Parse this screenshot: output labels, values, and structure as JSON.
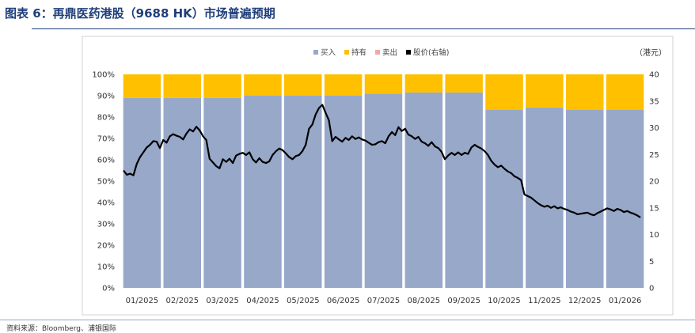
{
  "figure": {
    "title": "图表 6：再鼎医药港股（9688 HK）市场普遍预期",
    "source": "资料来源：Bloomberg、浦银国际"
  },
  "chart_data": {
    "type": "bar",
    "stacked": true,
    "percent_stacked": true,
    "unit_right": "（港元）",
    "categories": [
      "01/2025",
      "02/2025",
      "03/2025",
      "04/2025",
      "05/2025",
      "06/2025",
      "07/2025",
      "08/2025",
      "09/2025",
      "10/2025",
      "11/2025",
      "12/2025",
      "01/2026"
    ],
    "legend_position": "top-right",
    "legend": [
      "买入",
      "持有",
      "卖出",
      "股价(右轴)"
    ],
    "colors": {
      "buy": "#97a8c9",
      "hold": "#ffc000",
      "sell": "#f4a7a7",
      "price": "#000000"
    },
    "series": [
      {
        "name": "买入",
        "values": [
          89,
          89,
          89,
          90,
          90,
          90,
          91,
          91.5,
          91.5,
          83.5,
          84.5,
          83.5,
          83.5
        ]
      },
      {
        "name": "持有",
        "values": [
          11,
          11,
          11,
          10,
          10,
          10,
          9,
          8.5,
          8.5,
          16.5,
          15.5,
          16.5,
          16.5
        ]
      },
      {
        "name": "卖出",
        "values": [
          0,
          0,
          0,
          0,
          0,
          0,
          0,
          0,
          0,
          0,
          0,
          0,
          0
        ]
      }
    ],
    "y_left": {
      "min": 0,
      "max": 100,
      "step": 10,
      "tick_labels": [
        "0%",
        "10%",
        "20%",
        "30%",
        "40%",
        "50%",
        "60%",
        "70%",
        "80%",
        "90%",
        "100%"
      ]
    },
    "y_right": {
      "min": 0,
      "max": 40,
      "step": 5,
      "tick_labels": [
        "0",
        "5",
        "10",
        "15",
        "20",
        "25",
        "30",
        "35",
        "40"
      ]
    },
    "price_line": {
      "name": "股价(右轴)",
      "axis": "right",
      "values": [
        22,
        21.2,
        21.4,
        21.1,
        23.2,
        24.5,
        25.4,
        26.3,
        26.8,
        27.5,
        27.4,
        26.2,
        27.7,
        27.2,
        28.4,
        28.8,
        28.5,
        28.3,
        27.8,
        28.9,
        29.7,
        29.3,
        30.2,
        29.5,
        28.4,
        27.7,
        24.2,
        23.5,
        22.8,
        22.4,
        24.1,
        23.6,
        24.2,
        23.4,
        24.8,
        25.1,
        25.3,
        24.9,
        25.4,
        24.1,
        23.5,
        24.3,
        23.6,
        23.4,
        23.7,
        24.9,
        25.6,
        26.1,
        25.8,
        25.2,
        24.5,
        24.1,
        24.7,
        24.9,
        25.6,
        26.8,
        29.8,
        30.6,
        32.5,
        33.7,
        34.3,
        32.8,
        31.4,
        27.5,
        28.3,
        27.8,
        27.4,
        28.1,
        27.7,
        28.4,
        27.9,
        28.2,
        27.8,
        27.6,
        27.2,
        26.8,
        26.9,
        27.3,
        27.5,
        27.1,
        28.4,
        29.2,
        28.6,
        30.1,
        29.4,
        29.8,
        28.7,
        28.4,
        27.9,
        28.3,
        27.4,
        27.1,
        26.6,
        27.3,
        26.5,
        26.2,
        25.5,
        24.1,
        24.8,
        25.3,
        24.9,
        25.4,
        24.9,
        25.3,
        25.1,
        26.3,
        26.8,
        26.4,
        26.1,
        25.6,
        24.9,
        23.8,
        23.1,
        22.6,
        22.9,
        22.3,
        21.8,
        21.5,
        20.9,
        20.6,
        20.2,
        17.5,
        17.2,
        16.9,
        16.4,
        15.9,
        15.5,
        15.2,
        15.4,
        15.0,
        15.3,
        14.9,
        15.1,
        14.8,
        14.6,
        14.3,
        14.1,
        13.8,
        13.9,
        14.0,
        14.1,
        13.8,
        13.6,
        14.0,
        14.3,
        14.6,
        14.9,
        14.7,
        14.4,
        14.8,
        14.6,
        14.2,
        14.4,
        14.1,
        13.9,
        13.6,
        13.2
      ]
    }
  }
}
